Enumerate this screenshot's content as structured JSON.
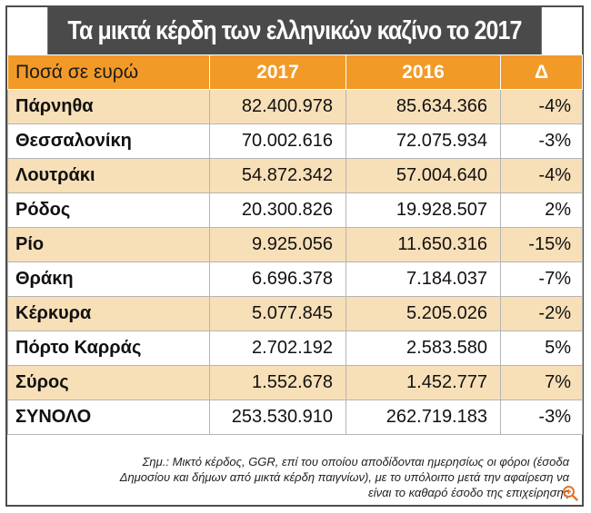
{
  "title": "Τα μικτά κέρδη των ελληνικών καζίνο το 2017",
  "header": {
    "label": "Ποσά σε ευρώ",
    "col_2017": "2017",
    "col_2016": "2016",
    "col_delta": "Δ"
  },
  "rows": [
    {
      "name": "Πάρνηθα",
      "v2017": "82.400.978",
      "v2016": "85.634.366",
      "delta": "-4%"
    },
    {
      "name": "Θεσσαλονίκη",
      "v2017": "70.002.616",
      "v2016": "72.075.934",
      "delta": "-3%"
    },
    {
      "name": "Λουτράκι",
      "v2017": "54.872.342",
      "v2016": "57.004.640",
      "delta": "-4%"
    },
    {
      "name": "Ρόδος",
      "v2017": "20.300.826",
      "v2016": "19.928.507",
      "delta": "2%"
    },
    {
      "name": "Ρίο",
      "v2017": "9.925.056",
      "v2016": "11.650.316",
      "delta": "-15%"
    },
    {
      "name": "Θράκη",
      "v2017": "6.696.378",
      "v2016": "7.184.037",
      "delta": "-7%"
    },
    {
      "name": "Κέρκυρα",
      "v2017": "5.077.845",
      "v2016": "5.205.026",
      "delta": "-2%"
    },
    {
      "name": "Πόρτο Καρράς",
      "v2017": "2.702.192",
      "v2016": "2.583.580",
      "delta": "5%"
    },
    {
      "name": "Σύρος",
      "v2017": "1.552.678",
      "v2016": "1.452.777",
      "delta": "7%"
    }
  ],
  "total": {
    "name": "ΣΥΝΟΛΟ",
    "v2017": "253.530.910",
    "v2016": "262.719.183",
    "delta": "-3%"
  },
  "note": {
    "line1": "Σημ.: Μικτό κέρδος, GGR, επί του οποίου αποδίδονται ημερησίως οι φόροι (έσοδα",
    "line2": "Δημοσίου και δήμων από μικτά κέρδη παιγνίων), με το υπόλοιπο μετά την αφαίρεση να",
    "line3": "είναι το καθαρό έσοδο της επιχείρησης"
  },
  "colors": {
    "title_bg": "#4a4a4a",
    "header_bg": "#f29a28",
    "shade_bg": "#f7dfb8",
    "zoom_icon": "#e8742a"
  },
  "icons": {
    "zoom": "zoom-in-icon"
  }
}
